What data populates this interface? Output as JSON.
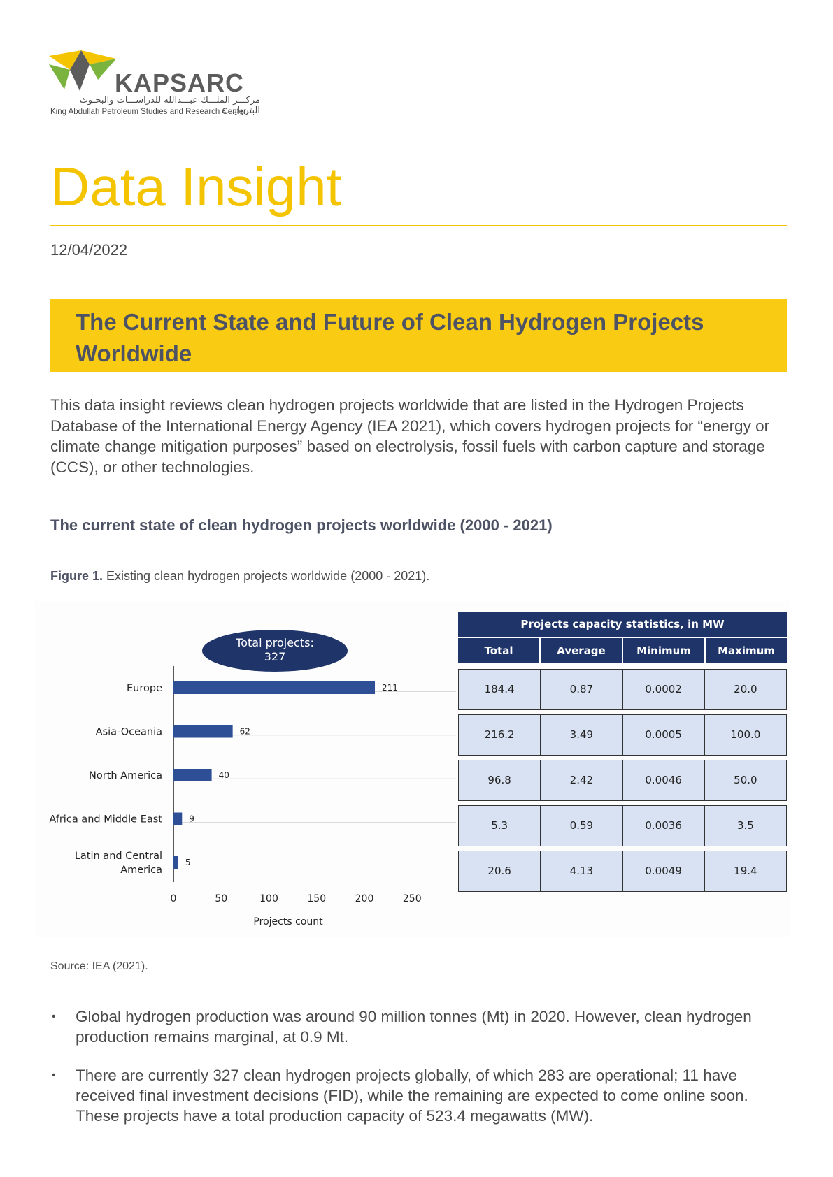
{
  "logo": {
    "wordmark": "KAPSARC",
    "arabic": "مركـــز الملـــك عبـــدالله للدراســـات والبحـوث البتروليـــة",
    "english": "King Abdullah Petroleum Studies and Research Center",
    "colors": {
      "yellow": "#f5c400",
      "green": "#7bb33f",
      "dark": "#5c5c5c"
    }
  },
  "document": {
    "title": "Data Insight",
    "date": "12/04/2022",
    "banner_title": "The Current State and Future of Clean Hydrogen Projects Worldwide",
    "intro": "This data insight reviews clean hydrogen projects worldwide that are listed in the Hydrogen Projects Database of the International Energy Agency (IEA 2021), which covers hydrogen projects for “energy or climate change mitigation purposes” based on electrolysis, fossil fuels with carbon capture and storage (CCS), or other technologies.",
    "section_heading": "The current state of clean hydrogen projects worldwide (2000 - 2021)",
    "figure_label": "Figure 1.",
    "figure_caption": " Existing clean hydrogen projects worldwide (2000 - 2021).",
    "source": "Source: IEA (2021).",
    "bullets": [
      "Global hydrogen production was around 90 million tonnes (Mt) in 2020. However, clean hydrogen production remains marginal, at 0.9 Mt.",
      "There are currently 327 clean hydrogen projects globally, of which 283 are operational; 11 have received final investment decisions (FID), while the remaining are expected to come online soon. These projects have a total production capacity of 523.4 megawatts (MW)."
    ],
    "bullet_symbol": "•"
  },
  "chart_data": {
    "type": "bar",
    "orientation": "horizontal",
    "callout_line1": "Total projects:",
    "callout_line2": "327",
    "categories": [
      "Europe",
      "Asia-Oceania",
      "North America",
      "Africa and Middle East",
      "Latin and Central America"
    ],
    "values": [
      211,
      62,
      40,
      9,
      5
    ],
    "value_labels": [
      "211",
      "62",
      "40",
      "9",
      "5"
    ],
    "xlabel": "Projects count",
    "xlim": [
      0,
      250
    ],
    "xticks": [
      "0",
      "50",
      "100",
      "150",
      "200",
      "250"
    ],
    "bar_color": "#2e4f96",
    "grid": false
  },
  "stats_table": {
    "title": "Projects capacity statistics, in MW",
    "columns": [
      "Total",
      "Average",
      "Minimum",
      "Maximum"
    ],
    "rows": [
      [
        "184.4",
        "0.87",
        "0.0002",
        "20.0"
      ],
      [
        "216.2",
        "3.49",
        "0.0005",
        "100.0"
      ],
      [
        "96.8",
        "2.42",
        "0.0046",
        "50.0"
      ],
      [
        "5.3",
        "0.59",
        "0.0036",
        "3.5"
      ],
      [
        "20.6",
        "4.13",
        "0.0049",
        "19.4"
      ]
    ],
    "header_color": "#1f3468",
    "cell_color": "#d9e2f2"
  }
}
